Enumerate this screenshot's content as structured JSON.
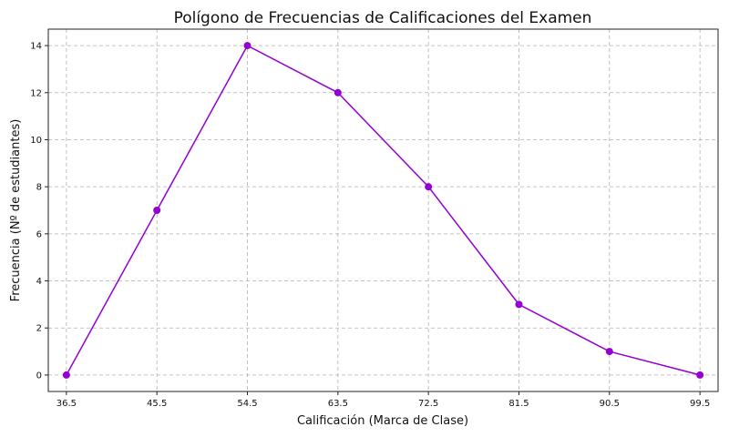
{
  "chart_data": {
    "type": "line",
    "title": "Polígono de Frecuencias de Calificaciones del Examen",
    "xlabel": "Calificación (Marca de Clase)",
    "ylabel": "Frecuencia (Nº de estudiantes)",
    "x": [
      36.5,
      45.5,
      54.5,
      63.5,
      72.5,
      81.5,
      90.5,
      99.5
    ],
    "x_tick_labels": [
      "36.5",
      "45.5",
      "54.5",
      "63.5",
      "72.5",
      "81.5",
      "90.5",
      "99.5"
    ],
    "y_ticks": [
      0,
      2,
      4,
      6,
      8,
      10,
      12,
      14
    ],
    "y_tick_labels": [
      "0",
      "2",
      "4",
      "6",
      "8",
      "10",
      "12",
      "14"
    ],
    "series": [
      {
        "values": [
          0,
          7,
          14,
          12,
          8,
          3,
          1,
          0
        ],
        "color": "#9400d3",
        "marker": "circle"
      }
    ],
    "xlim": [
      34.7,
      101.3
    ],
    "ylim": [
      -0.7,
      14.7
    ],
    "grid": true,
    "legend": "none"
  }
}
